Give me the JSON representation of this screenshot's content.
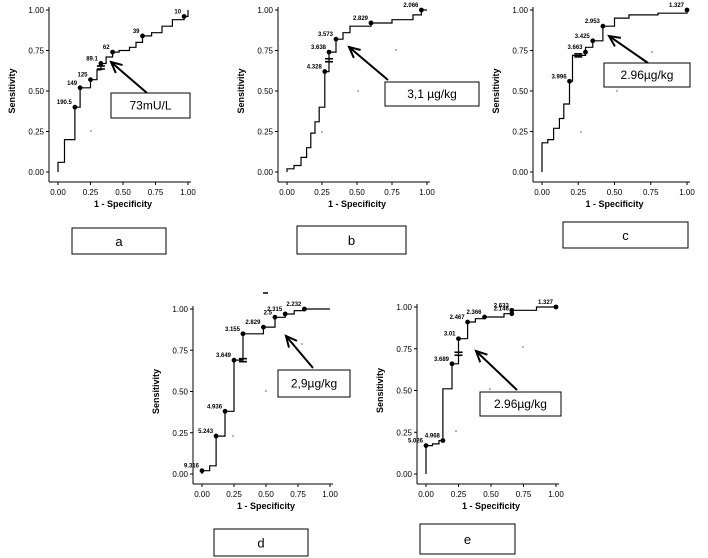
{
  "chart_data": [
    {
      "type": "line",
      "panel_label": "a",
      "callout": "73mU/L",
      "xlabel": "1 - Specificity",
      "ylabel": "Sensitivity",
      "xlim": [
        0,
        1
      ],
      "ylim": [
        0,
        1
      ],
      "xticks": [
        "0.00",
        "0.25",
        "0.50",
        "0.75",
        "1.00"
      ],
      "yticks": [
        "0.00",
        "0.25",
        "0.50",
        "0.75",
        "1.00"
      ],
      "curve": [
        [
          0,
          0
        ],
        [
          0,
          0.06
        ],
        [
          0.05,
          0.06
        ],
        [
          0.05,
          0.2
        ],
        [
          0.13,
          0.2
        ],
        [
          0.13,
          0.4
        ],
        [
          0.17,
          0.4
        ],
        [
          0.17,
          0.52
        ],
        [
          0.25,
          0.52
        ],
        [
          0.25,
          0.57
        ],
        [
          0.3,
          0.57
        ],
        [
          0.3,
          0.63
        ],
        [
          0.33,
          0.63
        ],
        [
          0.33,
          0.67
        ],
        [
          0.37,
          0.67
        ],
        [
          0.37,
          0.71
        ],
        [
          0.42,
          0.71
        ],
        [
          0.42,
          0.74
        ],
        [
          0.47,
          0.74
        ],
        [
          0.47,
          0.75
        ],
        [
          0.55,
          0.75
        ],
        [
          0.55,
          0.77
        ],
        [
          0.6,
          0.77
        ],
        [
          0.6,
          0.8
        ],
        [
          0.65,
          0.8
        ],
        [
          0.65,
          0.84
        ],
        [
          0.72,
          0.84
        ],
        [
          0.72,
          0.86
        ],
        [
          0.8,
          0.86
        ],
        [
          0.8,
          0.9
        ],
        [
          0.88,
          0.9
        ],
        [
          0.88,
          0.94
        ],
        [
          0.97,
          0.94
        ],
        [
          0.97,
          0.96
        ],
        [
          1,
          0.96
        ],
        [
          1,
          1
        ]
      ],
      "points": [
        {
          "x": 0.13,
          "y": 0.4,
          "label": "190.5"
        },
        {
          "x": 0.17,
          "y": 0.52,
          "label": "149"
        },
        {
          "x": 0.25,
          "y": 0.57,
          "label": "125"
        },
        {
          "x": 0.33,
          "y": 0.67,
          "label": "89.1"
        },
        {
          "x": 0.42,
          "y": 0.74,
          "label": "62"
        },
        {
          "x": 0.65,
          "y": 0.84,
          "label": "39"
        },
        {
          "x": 0.97,
          "y": 0.96,
          "label": "10"
        }
      ],
      "cutoff": {
        "x": 0.33,
        "y": 0.645
      }
    },
    {
      "type": "line",
      "panel_label": "b",
      "callout": "3,1 µg/kg",
      "xlabel": "1 - Specificity",
      "ylabel": "Sensitivity",
      "xlim": [
        0,
        1
      ],
      "ylim": [
        0,
        1
      ],
      "xticks": [
        "0.00",
        "0.25",
        "0.50",
        "0.75",
        "1.00"
      ],
      "yticks": [
        "0.00",
        "0.25",
        "0.50",
        "0.75",
        "1.00"
      ],
      "curve": [
        [
          0,
          0
        ],
        [
          0,
          0.02
        ],
        [
          0.05,
          0.02
        ],
        [
          0.05,
          0.04
        ],
        [
          0.1,
          0.04
        ],
        [
          0.1,
          0.09
        ],
        [
          0.14,
          0.09
        ],
        [
          0.14,
          0.15
        ],
        [
          0.17,
          0.15
        ],
        [
          0.17,
          0.24
        ],
        [
          0.2,
          0.24
        ],
        [
          0.2,
          0.31
        ],
        [
          0.23,
          0.31
        ],
        [
          0.23,
          0.4
        ],
        [
          0.27,
          0.4
        ],
        [
          0.27,
          0.62
        ],
        [
          0.3,
          0.62
        ],
        [
          0.3,
          0.74
        ],
        [
          0.35,
          0.74
        ],
        [
          0.35,
          0.82
        ],
        [
          0.4,
          0.82
        ],
        [
          0.4,
          0.86
        ],
        [
          0.45,
          0.86
        ],
        [
          0.45,
          0.9
        ],
        [
          0.6,
          0.9
        ],
        [
          0.6,
          0.92
        ],
        [
          0.75,
          0.92
        ],
        [
          0.75,
          0.94
        ],
        [
          0.9,
          0.94
        ],
        [
          0.9,
          0.97
        ],
        [
          0.96,
          0.97
        ],
        [
          0.96,
          1
        ],
        [
          1,
          1
        ]
      ],
      "points": [
        {
          "x": 0.27,
          "y": 0.62,
          "label": "4.328"
        },
        {
          "x": 0.3,
          "y": 0.74,
          "label": "3.638"
        },
        {
          "x": 0.35,
          "y": 0.82,
          "label": "3.573"
        },
        {
          "x": 0.6,
          "y": 0.92,
          "label": "2.829"
        },
        {
          "x": 0.96,
          "y": 1.0,
          "label": "2.066"
        }
      ],
      "cutoff": {
        "x": 0.3,
        "y": 0.69
      }
    },
    {
      "type": "line",
      "panel_label": "c",
      "callout": "2.96µg/kg",
      "xlabel": "1 - Specificity",
      "ylabel": "Sensitivity",
      "xlim": [
        0,
        1
      ],
      "ylim": [
        0,
        1
      ],
      "xticks": [
        "0.00",
        "0.25",
        "0.50",
        "0.75",
        "1.00"
      ],
      "yticks": [
        "0.00",
        "0.25",
        "0.50",
        "0.75",
        "1.00"
      ],
      "curve": [
        [
          0,
          0
        ],
        [
          0,
          0.18
        ],
        [
          0.04,
          0.18
        ],
        [
          0.04,
          0.2
        ],
        [
          0.08,
          0.2
        ],
        [
          0.08,
          0.27
        ],
        [
          0.12,
          0.27
        ],
        [
          0.12,
          0.33
        ],
        [
          0.15,
          0.33
        ],
        [
          0.15,
          0.42
        ],
        [
          0.19,
          0.42
        ],
        [
          0.19,
          0.56
        ],
        [
          0.21,
          0.56
        ],
        [
          0.21,
          0.72
        ],
        [
          0.3,
          0.72
        ],
        [
          0.3,
          0.77
        ],
        [
          0.35,
          0.77
        ],
        [
          0.35,
          0.81
        ],
        [
          0.42,
          0.81
        ],
        [
          0.42,
          0.9
        ],
        [
          0.5,
          0.9
        ],
        [
          0.5,
          0.95
        ],
        [
          0.6,
          0.95
        ],
        [
          0.6,
          0.97
        ],
        [
          0.8,
          0.97
        ],
        [
          0.8,
          0.98
        ],
        [
          1,
          0.98
        ],
        [
          1,
          1
        ]
      ],
      "points": [
        {
          "x": 0.19,
          "y": 0.56,
          "label": "3.996"
        },
        {
          "x": 0.3,
          "y": 0.74,
          "label": "3.663"
        },
        {
          "x": 0.35,
          "y": 0.81,
          "label": "3.425"
        },
        {
          "x": 0.42,
          "y": 0.9,
          "label": "2.953"
        },
        {
          "x": 1.0,
          "y": 1.0,
          "label": "1.327"
        }
      ],
      "cutoff": {
        "x": 0.25,
        "y": 0.72
      }
    },
    {
      "type": "line",
      "panel_label": "d",
      "callout": "2,9µg/kg",
      "xlabel": "1 - Specificity",
      "ylabel": "Sensitivity",
      "xlim": [
        0,
        1
      ],
      "ylim": [
        0,
        1
      ],
      "xticks": [
        "0.00",
        "0.25",
        "0.50",
        "0.75",
        "1.00"
      ],
      "yticks": [
        "0.00",
        "0.25",
        "0.50",
        "0.75",
        "1.00"
      ],
      "curve": [
        [
          0,
          0
        ],
        [
          0,
          0.02
        ],
        [
          0.06,
          0.02
        ],
        [
          0.06,
          0.05
        ],
        [
          0.11,
          0.05
        ],
        [
          0.11,
          0.23
        ],
        [
          0.18,
          0.23
        ],
        [
          0.18,
          0.38
        ],
        [
          0.25,
          0.38
        ],
        [
          0.25,
          0.69
        ],
        [
          0.32,
          0.69
        ],
        [
          0.32,
          0.85
        ],
        [
          0.48,
          0.85
        ],
        [
          0.48,
          0.89
        ],
        [
          0.57,
          0.89
        ],
        [
          0.57,
          0.95
        ],
        [
          0.65,
          0.95
        ],
        [
          0.65,
          0.97
        ],
        [
          0.72,
          0.97
        ],
        [
          0.72,
          0.99
        ],
        [
          0.8,
          0.99
        ],
        [
          0.8,
          1
        ],
        [
          1,
          1
        ]
      ],
      "points": [
        {
          "x": 0,
          "y": 0.02,
          "label": "9.316"
        },
        {
          "x": 0.11,
          "y": 0.23,
          "label": "5.243"
        },
        {
          "x": 0.18,
          "y": 0.38,
          "label": "4.936"
        },
        {
          "x": 0.25,
          "y": 0.69,
          "label": "3.649"
        },
        {
          "x": 0.32,
          "y": 0.85,
          "label": "3.155"
        },
        {
          "x": 0.48,
          "y": 0.89,
          "label": "2.829"
        },
        {
          "x": 0.57,
          "y": 0.95,
          "label": "2.5"
        },
        {
          "x": 0.65,
          "y": 0.97,
          "label": "2.315"
        },
        {
          "x": 0.8,
          "y": 1.0,
          "label": "2.232"
        }
      ],
      "cutoff": {
        "x": 0.32,
        "y": 0.69
      }
    },
    {
      "type": "line",
      "panel_label": "e",
      "callout": "2.96µg/kg",
      "xlabel": "1 - Specificity",
      "ylabel": "Sensitivity",
      "xlim": [
        0,
        1
      ],
      "ylim": [
        0,
        1
      ],
      "xticks": [
        "0.00",
        "0.25",
        "0.50",
        "0.75",
        "1.00"
      ],
      "yticks": [
        "0.00",
        "0.25",
        "0.50",
        "0.75",
        "1.00"
      ],
      "curve": [
        [
          0,
          0
        ],
        [
          0,
          0.17
        ],
        [
          0.05,
          0.17
        ],
        [
          0.05,
          0.18
        ],
        [
          0.1,
          0.18
        ],
        [
          0.1,
          0.2
        ],
        [
          0.13,
          0.2
        ],
        [
          0.13,
          0.51
        ],
        [
          0.2,
          0.51
        ],
        [
          0.2,
          0.66
        ],
        [
          0.25,
          0.66
        ],
        [
          0.25,
          0.81
        ],
        [
          0.32,
          0.81
        ],
        [
          0.32,
          0.91
        ],
        [
          0.38,
          0.91
        ],
        [
          0.38,
          0.93
        ],
        [
          0.45,
          0.93
        ],
        [
          0.45,
          0.94
        ],
        [
          0.6,
          0.94
        ],
        [
          0.6,
          0.96
        ],
        [
          0.66,
          0.96
        ],
        [
          0.66,
          0.98
        ],
        [
          0.85,
          0.98
        ],
        [
          0.85,
          1
        ],
        [
          1,
          1
        ]
      ],
      "points": [
        {
          "x": 0,
          "y": 0.17,
          "label": "5.026"
        },
        {
          "x": 0.13,
          "y": 0.2,
          "label": "4.968"
        },
        {
          "x": 0.2,
          "y": 0.66,
          "label": "3.689"
        },
        {
          "x": 0.25,
          "y": 0.81,
          "label": "3.01"
        },
        {
          "x": 0.32,
          "y": 0.91,
          "label": "2.467"
        },
        {
          "x": 0.45,
          "y": 0.94,
          "label": "2.366"
        },
        {
          "x": 0.66,
          "y": 0.96,
          "label": "2.146"
        },
        {
          "x": 0.66,
          "y": 0.98,
          "label": "2.633"
        },
        {
          "x": 1.0,
          "y": 1.0,
          "label": "1.327"
        }
      ],
      "cutoff": {
        "x": 0.25,
        "y": 0.72
      }
    }
  ]
}
